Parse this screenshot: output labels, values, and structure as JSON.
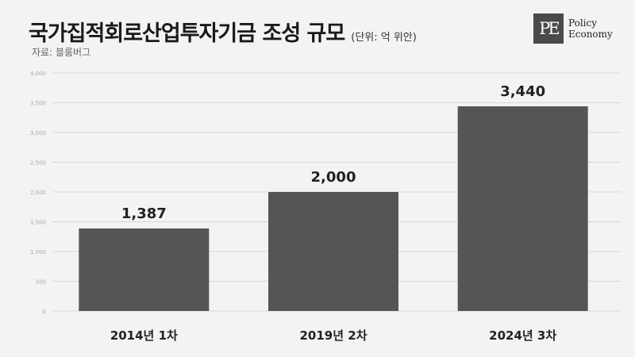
{
  "header": {
    "title": "국가집적회로산업투자기금 조성 규모",
    "unit": "(단위: 억 위안)",
    "source": "자료: 블룸버그"
  },
  "logo": {
    "mark": "PE",
    "line1": "Policy",
    "line2": "Economy"
  },
  "colors": {
    "bar": "#555555",
    "grid": "#d8d6d6",
    "background": "#f4f2f2"
  },
  "chart_data": {
    "type": "bar",
    "title": "국가집적회로산업투자기금 조성 규모",
    "categories": [
      "2014년 1차",
      "2019년 2차",
      "2024년 3차"
    ],
    "values": [
      1387,
      2000,
      3440
    ],
    "value_labels": [
      "1,387",
      "2,000",
      "3,440"
    ],
    "ylim": [
      0,
      4000
    ],
    "yticks": [
      0,
      500,
      1000,
      1500,
      2000,
      2500,
      3000,
      3500,
      4000
    ],
    "ytick_labels": [
      "0",
      "500",
      "1,000",
      "1,500",
      "2,000",
      "2,500",
      "3,000",
      "3,500",
      "4,000"
    ],
    "grid": true,
    "legend": "none"
  }
}
